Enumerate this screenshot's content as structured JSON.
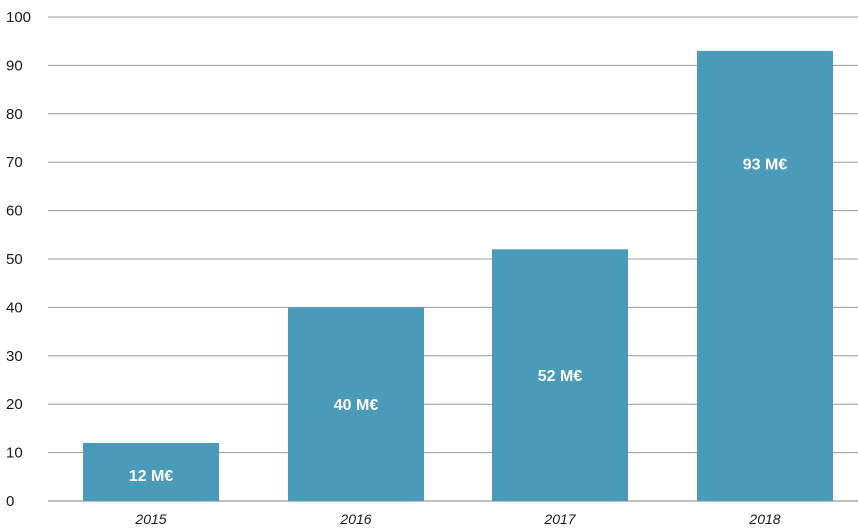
{
  "chart_data": {
    "type": "bar",
    "categories": [
      "2015",
      "2016",
      "2017",
      "2018"
    ],
    "values": [
      12,
      40,
      52,
      93
    ],
    "data_labels": [
      "12 M€",
      "40 M€",
      "52 M€",
      "93 M€"
    ],
    "title": "",
    "xlabel": "",
    "ylabel": "",
    "ylim": [
      0,
      100
    ],
    "yticks": [
      "0",
      "10",
      "20",
      "30",
      "40",
      "50",
      "60",
      "70",
      "80",
      "90",
      "100"
    ],
    "grid": "horizontal",
    "legend": "none",
    "bar_color": "#4a9aba",
    "gridline_color": "#999999"
  }
}
